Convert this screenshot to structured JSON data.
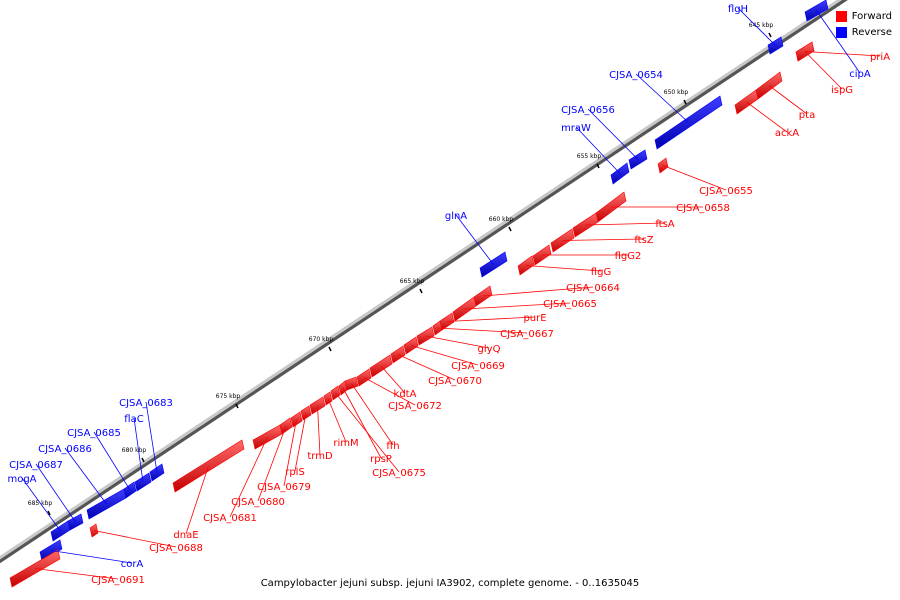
{
  "colors": {
    "forward": "#ff0000",
    "reverse": "#0000ff",
    "backbone": "#8c8c8c"
  },
  "legend": {
    "forward_label": "Forward",
    "reverse_label": "Reverse"
  },
  "caption": "Campylobacter jejuni subsp. jejuni IA3902, complete genome. - 0..1635045",
  "ticks": [
    {
      "label": "645 kbp"
    },
    {
      "label": "650 kbp"
    },
    {
      "label": "655 kbp"
    },
    {
      "label": "660 kbp"
    },
    {
      "label": "665 kbp"
    },
    {
      "label": "670 kbp"
    },
    {
      "label": "675 kbp"
    },
    {
      "label": "680 kbp"
    },
    {
      "label": "685 kbp"
    }
  ],
  "genes": [
    {
      "label": "flgH",
      "strand": "reverse"
    },
    {
      "label": "priA",
      "strand": "forward"
    },
    {
      "label": "cipA",
      "strand": "reverse"
    },
    {
      "label": "ispG",
      "strand": "forward"
    },
    {
      "label": "CJSA_0654",
      "strand": "reverse"
    },
    {
      "label": "pta",
      "strand": "forward"
    },
    {
      "label": "ackA",
      "strand": "forward"
    },
    {
      "label": "CJSA_0656",
      "strand": "reverse"
    },
    {
      "label": "mraW",
      "strand": "reverse"
    },
    {
      "label": "CJSA_0655",
      "strand": "forward"
    },
    {
      "label": "CJSA_0658",
      "strand": "forward"
    },
    {
      "label": "glnA",
      "strand": "reverse"
    },
    {
      "label": "ftsA",
      "strand": "forward"
    },
    {
      "label": "ftsZ",
      "strand": "forward"
    },
    {
      "label": "flgG2",
      "strand": "forward"
    },
    {
      "label": "flgG",
      "strand": "forward"
    },
    {
      "label": "CJSA_0664",
      "strand": "forward"
    },
    {
      "label": "CJSA_0665",
      "strand": "forward"
    },
    {
      "label": "purE",
      "strand": "forward"
    },
    {
      "label": "CJSA_0667",
      "strand": "forward"
    },
    {
      "label": "glyQ",
      "strand": "forward"
    },
    {
      "label": "CJSA_0669",
      "strand": "forward"
    },
    {
      "label": "CJSA_0670",
      "strand": "forward"
    },
    {
      "label": "kdtA",
      "strand": "forward"
    },
    {
      "label": "CJSA_0672",
      "strand": "forward"
    },
    {
      "label": "ffh",
      "strand": "forward"
    },
    {
      "label": "rpsP",
      "strand": "forward"
    },
    {
      "label": "CJSA_0675",
      "strand": "forward"
    },
    {
      "label": "rimM",
      "strand": "forward"
    },
    {
      "label": "trmD",
      "strand": "forward"
    },
    {
      "label": "rplS",
      "strand": "forward"
    },
    {
      "label": "CJSA_0679",
      "strand": "forward"
    },
    {
      "label": "CJSA_0680",
      "strand": "forward"
    },
    {
      "label": "CJSA_0681",
      "strand": "forward"
    },
    {
      "label": "dnaE",
      "strand": "forward"
    },
    {
      "label": "CJSA_0683",
      "strand": "reverse"
    },
    {
      "label": "flaC",
      "strand": "reverse"
    },
    {
      "label": "CJSA_0685",
      "strand": "reverse"
    },
    {
      "label": "CJSA_0686",
      "strand": "reverse"
    },
    {
      "label": "CJSA_0687",
      "strand": "reverse"
    },
    {
      "label": "mogA",
      "strand": "reverse"
    },
    {
      "label": "CJSA_0688",
      "strand": "forward"
    },
    {
      "label": "corA",
      "strand": "reverse"
    },
    {
      "label": "CJSA_0691",
      "strand": "forward"
    }
  ]
}
